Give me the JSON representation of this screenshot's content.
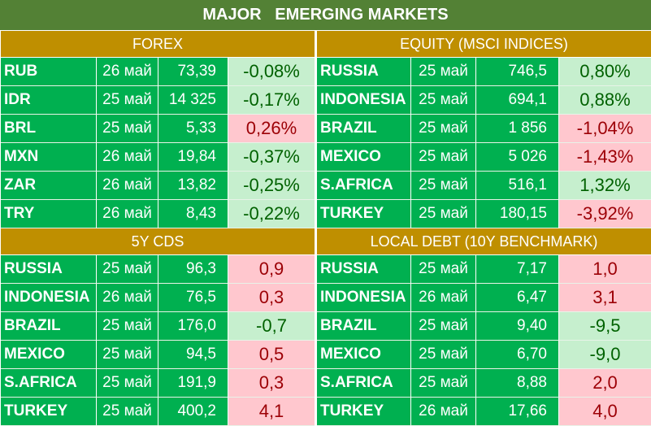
{
  "title": "MAJOR   EMERGING MARKETS",
  "panels": {
    "forex": {
      "header": "FOREX",
      "rows": [
        {
          "name": "RUB",
          "date": "26 май",
          "value": "73,39",
          "change": "-0,08%",
          "dir": "pos"
        },
        {
          "name": "IDR",
          "date": "25 май",
          "value": "14 325",
          "change": "-0,17%",
          "dir": "pos"
        },
        {
          "name": "BRL",
          "date": "25 май",
          "value": "5,33",
          "change": "0,26%",
          "dir": "neg"
        },
        {
          "name": "MXN",
          "date": "26 май",
          "value": "19,84",
          "change": "-0,37%",
          "dir": "pos"
        },
        {
          "name": "ZAR",
          "date": "26 май",
          "value": "13,82",
          "change": "-0,25%",
          "dir": "pos"
        },
        {
          "name": "TRY",
          "date": "26 май",
          "value": "8,43",
          "change": "-0,22%",
          "dir": "pos"
        }
      ]
    },
    "equity": {
      "header": "EQUITY (MSCI INDICES)",
      "rows": [
        {
          "name": "RUSSIA",
          "date": "25 май",
          "value": "746,5",
          "change": "0,80%",
          "dir": "pos"
        },
        {
          "name": "INDONESIA",
          "date": "25 май",
          "value": "694,1",
          "change": "0,88%",
          "dir": "pos"
        },
        {
          "name": "BRAZIL",
          "date": "25 май",
          "value": "1 856",
          "change": "-1,04%",
          "dir": "neg"
        },
        {
          "name": "MEXICO",
          "date": "25 май",
          "value": "5 026",
          "change": "-1,43%",
          "dir": "neg"
        },
        {
          "name": "S.AFRICA",
          "date": "25 май",
          "value": "516,1",
          "change": "1,32%",
          "dir": "pos"
        },
        {
          "name": "TURKEY",
          "date": "25 май",
          "value": "180,15",
          "change": "-3,92%",
          "dir": "neg"
        }
      ]
    },
    "cds": {
      "header": "5Y CDS",
      "rows": [
        {
          "name": "RUSSIA",
          "date": "25 май",
          "value": "96,3",
          "change": "0,9",
          "dir": "neg"
        },
        {
          "name": "INDONESIA",
          "date": "26 май",
          "value": "76,5",
          "change": "0,3",
          "dir": "neg"
        },
        {
          "name": "BRAZIL",
          "date": "25 май",
          "value": "176,0",
          "change": "-0,7",
          "dir": "pos"
        },
        {
          "name": "MEXICO",
          "date": "25 май",
          "value": "94,5",
          "change": "0,5",
          "dir": "neg"
        },
        {
          "name": "S.AFRICA",
          "date": "25 май",
          "value": "191,9",
          "change": "0,3",
          "dir": "neg"
        },
        {
          "name": "TURKEY",
          "date": "25 май",
          "value": "400,2",
          "change": "4,1",
          "dir": "neg"
        }
      ]
    },
    "debt": {
      "header": "LOCAL DEBT (10Y BENCHMARK)",
      "rows": [
        {
          "name": "RUSSIA",
          "date": "25 май",
          "value": "7,17",
          "change": "1,0",
          "dir": "neg"
        },
        {
          "name": "INDONESIA",
          "date": "26 май",
          "value": "6,47",
          "change": "3,1",
          "dir": "neg"
        },
        {
          "name": "BRAZIL",
          "date": "25 май",
          "value": "9,40",
          "change": "-9,5",
          "dir": "pos"
        },
        {
          "name": "MEXICO",
          "date": "25 май",
          "value": "6,70",
          "change": "-9,0",
          "dir": "pos"
        },
        {
          "name": "S.AFRICA",
          "date": "25 май",
          "value": "8,88",
          "change": "2,0",
          "dir": "neg"
        },
        {
          "name": "TURKEY",
          "date": "26 май",
          "value": "17,66",
          "change": "4,0",
          "dir": "neg"
        }
      ]
    }
  },
  "colors": {
    "title_bg": "#538135",
    "header_bg": "#bf8f00",
    "row_bg": "#00b050",
    "pos_bg": "#c6efce",
    "pos_fg": "#006100",
    "neg_bg": "#ffc7ce",
    "neg_fg": "#9c0006"
  }
}
